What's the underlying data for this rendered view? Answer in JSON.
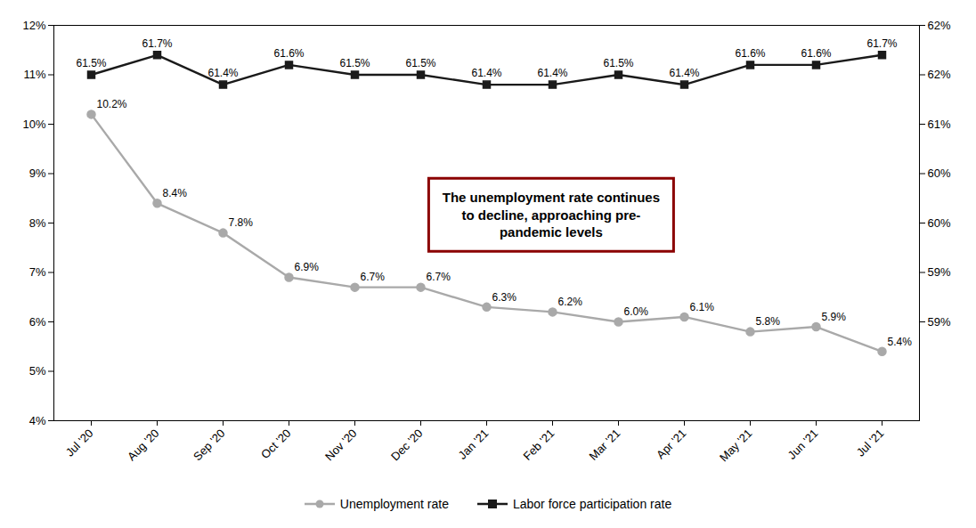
{
  "chart_data": {
    "type": "line",
    "categories": [
      "Jul '20",
      "Aug '20",
      "Sep '20",
      "Oct '20",
      "Nov '20",
      "Dec '20",
      "Jan '21",
      "Feb '21",
      "Mar '21",
      "Apr '21",
      "May '21",
      "Jun '21",
      "Jul '21"
    ],
    "series": [
      {
        "name": "Unemployment rate",
        "color": "#a9a9a9",
        "marker": "circle",
        "axis": "y",
        "values": [
          10.2,
          8.4,
          7.8,
          6.9,
          6.7,
          6.7,
          6.3,
          6.2,
          6.0,
          6.1,
          5.8,
          5.9,
          5.4
        ],
        "value_labels": [
          "10.2%",
          "8.4%",
          "7.8%",
          "6.9%",
          "6.7%",
          "6.7%",
          "6.3%",
          "6.2%",
          "6.0%",
          "6.1%",
          "5.8%",
          "5.9%",
          "5.4%"
        ]
      },
      {
        "name": "Labor force participation rate",
        "color": "#1a1a1a",
        "marker": "square",
        "axis": "y2",
        "values": [
          61.5,
          61.7,
          61.4,
          61.6,
          61.5,
          61.5,
          61.4,
          61.4,
          61.5,
          61.4,
          61.6,
          61.6,
          61.7
        ],
        "value_labels": [
          "61.5%",
          "61.7%",
          "61.4%",
          "61.6%",
          "61.5%",
          "61.5%",
          "61.4%",
          "61.4%",
          "61.5%",
          "61.4%",
          "61.6%",
          "61.6%",
          "61.7%"
        ]
      }
    ],
    "ylim": [
      4,
      12
    ],
    "yticks": [
      {
        "value": 4,
        "label": "4%"
      },
      {
        "value": 5,
        "label": "5%"
      },
      {
        "value": 6,
        "label": "6%"
      },
      {
        "value": 7,
        "label": "7%"
      },
      {
        "value": 8,
        "label": "8%"
      },
      {
        "value": 9,
        "label": "9%"
      },
      {
        "value": 10,
        "label": "10%"
      },
      {
        "value": 11,
        "label": "11%"
      },
      {
        "value": 12,
        "label": "12%"
      }
    ],
    "y2lim": [
      58.0,
      62.0
    ],
    "y2ticks": [
      {
        "value": 59.0,
        "label": "59%"
      },
      {
        "value": 59.5,
        "label": "59%"
      },
      {
        "value": 60.0,
        "label": "60%"
      },
      {
        "value": 60.5,
        "label": "60%"
      },
      {
        "value": 61.0,
        "label": "61%"
      },
      {
        "value": 61.5,
        "label": "62%"
      },
      {
        "value": 62.0,
        "label": "62%"
      }
    ],
    "annotation": "The unemployment rate continues\nto decline, approaching pre-\npandemic levels",
    "data_labels": true,
    "grid": false,
    "legend": "bottom"
  }
}
